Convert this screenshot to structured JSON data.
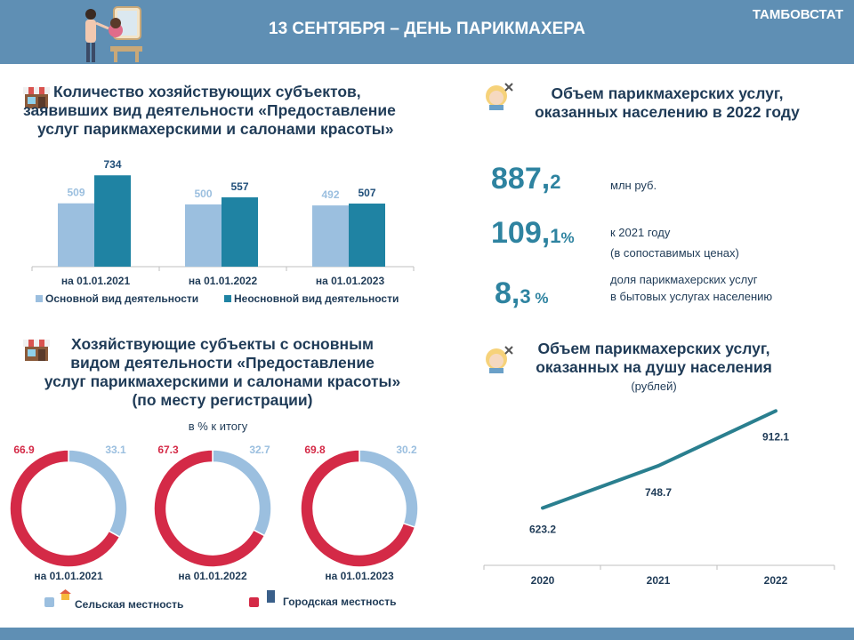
{
  "header": {
    "title": "13 СЕНТЯБРЯ – ДЕНЬ ПАРИКМАХЕРА",
    "org": "ТАМБОВСТАТ"
  },
  "section1": {
    "title_lines": [
      "Количество хозяйствующих субъектов,",
      "заявивших вид деятельности «Предоставление",
      "услуг парикмахерскими и салонами красоты»"
    ]
  },
  "section2": {
    "title_lines": [
      "Объем парикмахерских услуг,",
      "оказанных населению в 2022 году"
    ],
    "stats": [
      {
        "int": "887,",
        "frac": "2",
        "unit": "",
        "note1": "млн руб.",
        "note2": ""
      },
      {
        "int": "109,",
        "frac": "1",
        "unit": "%",
        "note1": "к 2021 году",
        "note2": "(в сопоставимых ценах)"
      },
      {
        "int": "8,",
        "frac": "3",
        "unit": " %",
        "note1": "доля парикмахерских  услуг",
        "note2": "в бытовых услугах  населению"
      }
    ]
  },
  "section3": {
    "title_lines": [
      "Хозяйствующие субъекты с основным",
      "видом деятельности «Предоставление",
      "услуг парикмахерскими и салонами красоты»",
      "(по месту регистрации)"
    ],
    "subtitle": "в % к итогу"
  },
  "section4": {
    "title_lines": [
      "Объем парикмахерских услуг,",
      "оказанных на душу населения"
    ],
    "subtitle": "(рублей)"
  },
  "colors": {
    "light_blue": "#9bbfdf",
    "teal": "#1f83a3",
    "red": "#d42a47",
    "line": "#2a7f8f",
    "title": "#1f3b57"
  },
  "chart_data": [
    {
      "type": "bar",
      "categories": [
        "на 01.01.2021",
        "на 01.01.2022",
        "на 01.01.2023"
      ],
      "series": [
        {
          "name": "Основной вид деятельности",
          "values": [
            509,
            500,
            492
          ]
        },
        {
          "name": "Неосновной вид деятельности",
          "values": [
            734,
            557,
            507
          ]
        }
      ],
      "legend": "bottom",
      "ylim": [
        0,
        800
      ]
    },
    {
      "type": "pie",
      "variant": "donut",
      "charts": [
        {
          "label": "на 01.01.2021",
          "values": [
            {
              "name": "Городская местность",
              "value": 66.9
            },
            {
              "name": "Сельская местность",
              "value": 33.1
            }
          ]
        },
        {
          "label": "на 01.01.2022",
          "values": [
            {
              "name": "Городская местность",
              "value": 67.3
            },
            {
              "name": "Сельская местность",
              "value": 32.7
            }
          ]
        },
        {
          "label": "на 01.01.2023",
          "values": [
            {
              "name": "Городская местность",
              "value": 69.8
            },
            {
              "name": "Сельская местность",
              "value": 30.2
            }
          ]
        }
      ],
      "legend": {
        "rural": "Сельская местность",
        "urban": "Городская местность"
      }
    },
    {
      "type": "line",
      "categories": [
        "2020",
        "2021",
        "2022"
      ],
      "values": [
        623.2,
        748.7,
        912.1
      ],
      "labels": [
        "623.2",
        "748.7",
        "912.1"
      ],
      "ylim": [
        500,
        950
      ]
    }
  ]
}
